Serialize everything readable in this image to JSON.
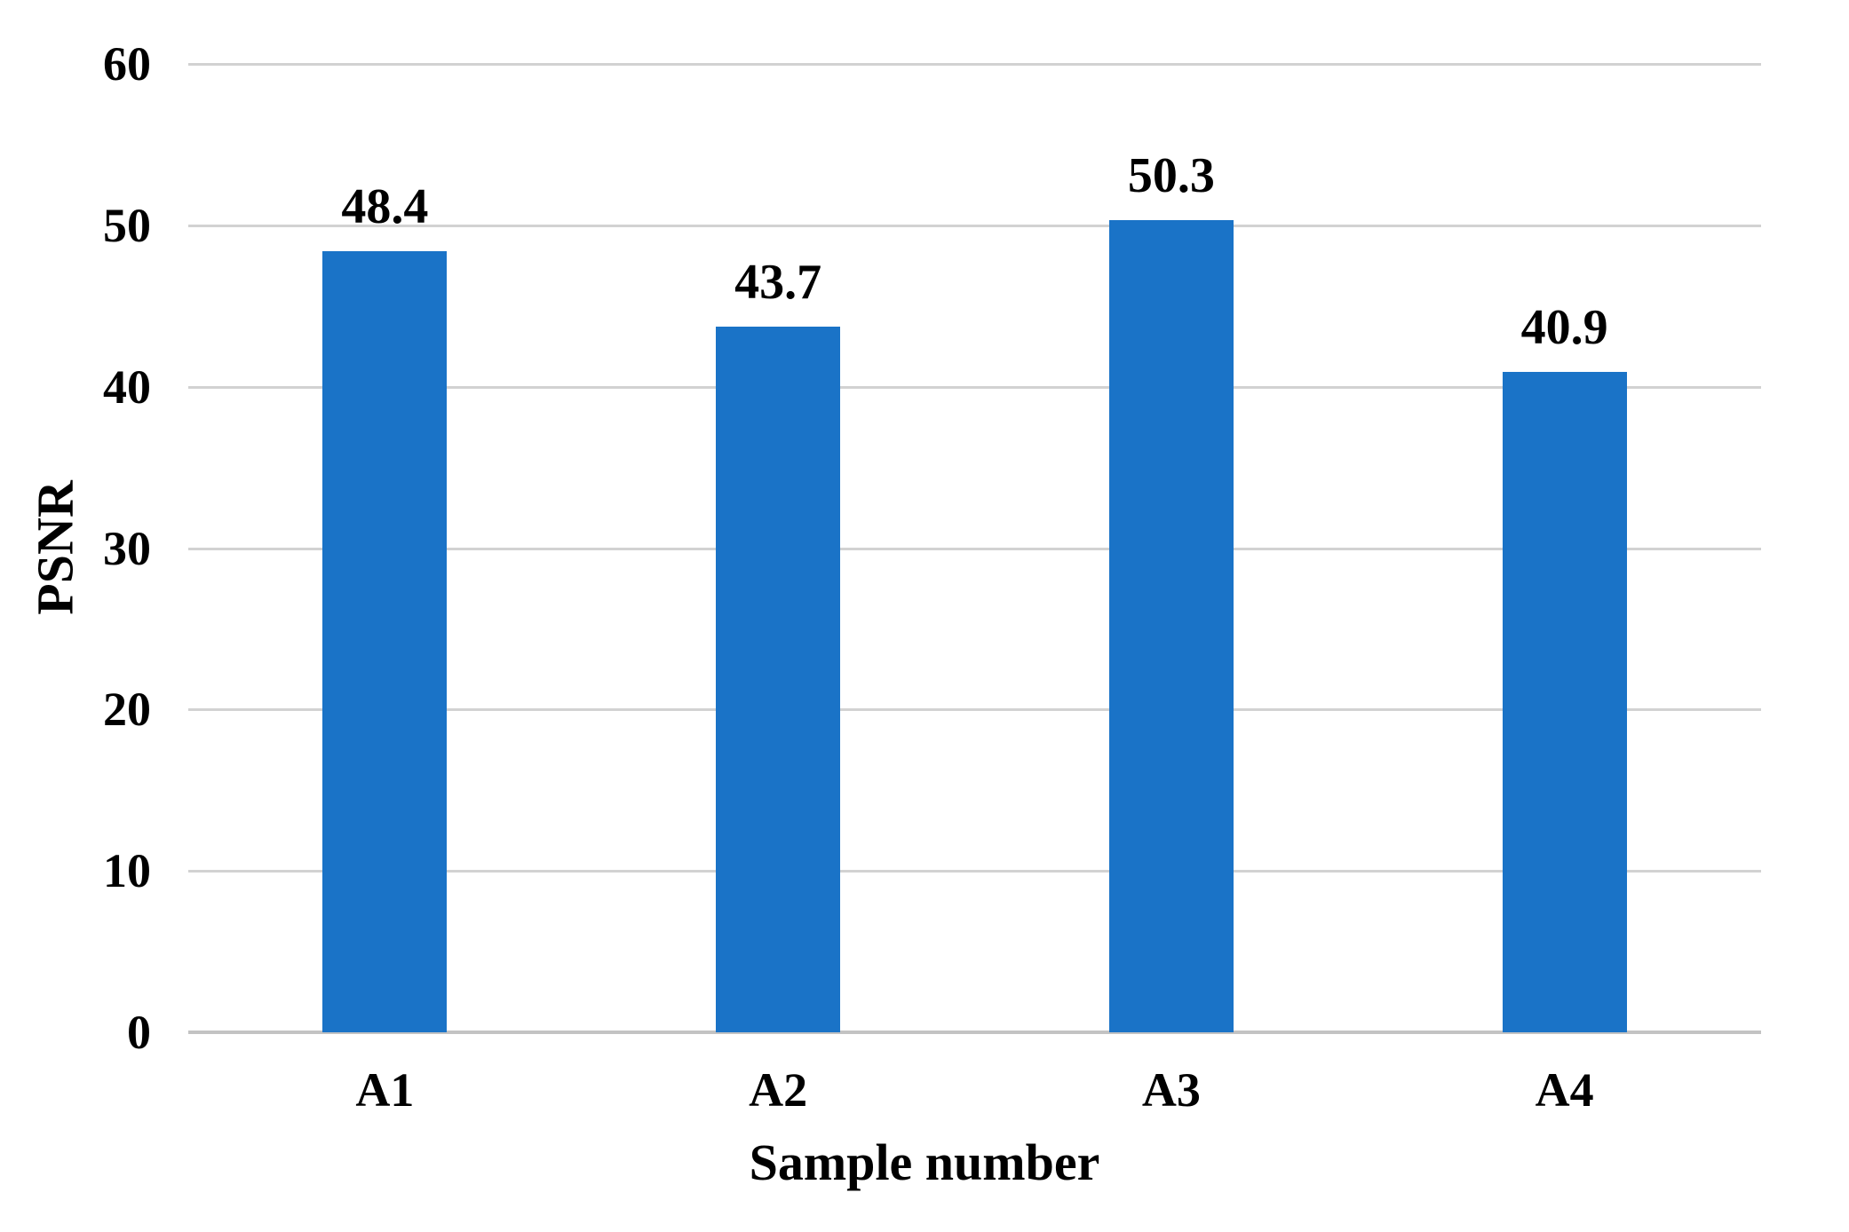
{
  "chart_data": {
    "type": "bar",
    "categories": [
      "A1",
      "A2",
      "A3",
      "A4"
    ],
    "values": [
      48.4,
      43.7,
      50.3,
      40.9
    ],
    "data_labels": [
      "48.4",
      "43.7",
      "50.3",
      "40.9"
    ],
    "title": "",
    "xlabel": "Sample number",
    "ylabel": "PSNR",
    "ylim": [
      0,
      60
    ],
    "yticks": [
      0,
      10,
      20,
      30,
      40,
      50,
      60
    ],
    "ytick_labels": [
      "0",
      "10",
      "20",
      "30",
      "40",
      "50",
      "60"
    ],
    "grid": true,
    "legend": false,
    "bar_color": "#1A73C7",
    "gridline_color": "#D2D2D2",
    "axis_line_color": "#C3C3C3",
    "text_color": "#000000"
  }
}
